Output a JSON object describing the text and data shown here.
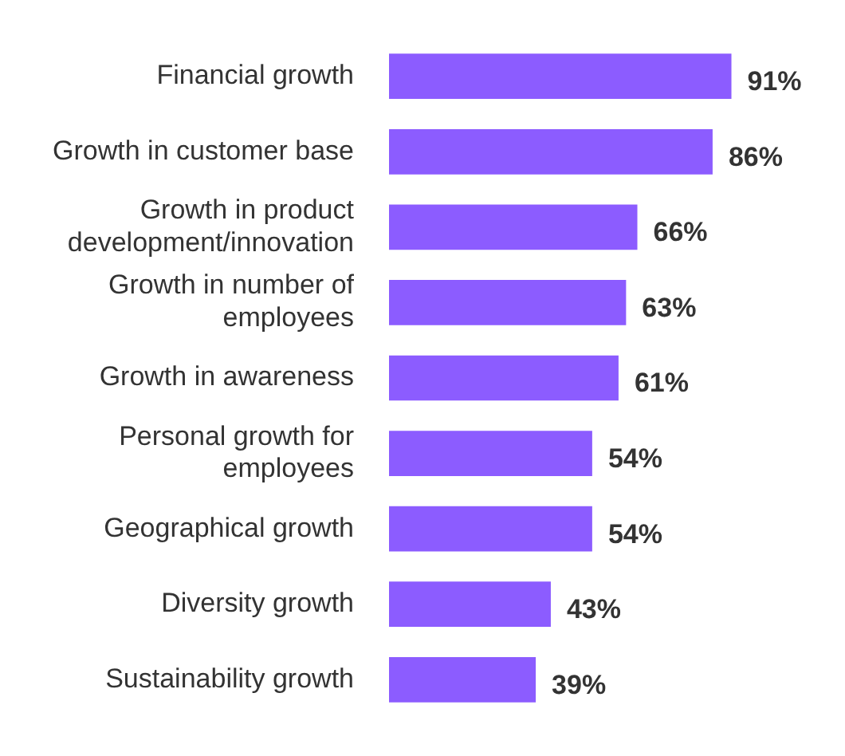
{
  "chart_data": {
    "type": "bar",
    "orientation": "horizontal",
    "categories": [
      "Financial growth",
      "Growth in customer base",
      "Growth in product development/innovation",
      "Growth in number of employees",
      "Growth in awareness",
      "Personal growth for employees",
      "Geographical growth",
      "Diversity growth",
      "Sustainability growth"
    ],
    "values": [
      91,
      86,
      66,
      63,
      61,
      54,
      54,
      43,
      39
    ],
    "value_labels": [
      "91%",
      "86%",
      "66%",
      "63%",
      "61%",
      "54%",
      "54%",
      "43%",
      "39%"
    ],
    "color": "#8c5cff",
    "tick_labels": "y"
  }
}
